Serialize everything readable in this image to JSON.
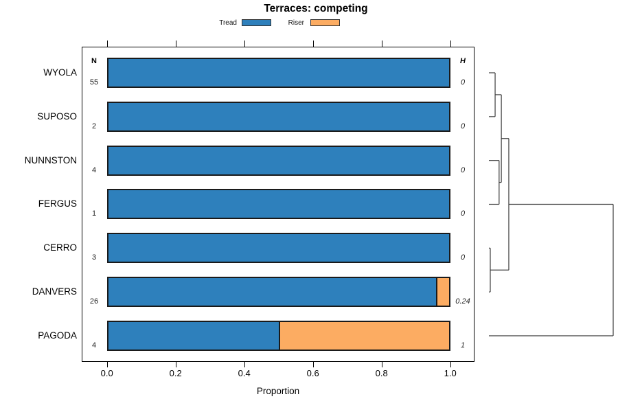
{
  "title": "Terraces: competing",
  "legend": {
    "items": [
      {
        "label": "Tread",
        "color": "#2E80BC"
      },
      {
        "label": "Riser",
        "color": "#FCAC62"
      }
    ]
  },
  "columns": {
    "n_header": "N",
    "h_header": "H"
  },
  "axis": {
    "label": "Proportion",
    "tick_labels": [
      "0.0",
      "0.2",
      "0.4",
      "0.6",
      "0.8",
      "1.0"
    ],
    "tick_values": [
      0,
      0.2,
      0.4,
      0.6,
      0.8,
      1.0
    ],
    "min": 0,
    "max": 1
  },
  "chart_data": {
    "type": "bar",
    "orientation": "horizontal",
    "stacked": true,
    "title": "Terraces: competing",
    "xlabel": "Proportion",
    "xlim": [
      0,
      1
    ],
    "grid": false,
    "legend_position": "top",
    "categories": [
      "WYOLA",
      "SUPOSO",
      "NUNNSTON",
      "FERGUS",
      "CERRO",
      "DANVERS",
      "PAGODA"
    ],
    "n_values": [
      "55",
      "2",
      "4",
      "1",
      "3",
      "26",
      "4"
    ],
    "h_values": [
      "0",
      "0",
      "0",
      "0",
      "0",
      "0.24",
      "1"
    ],
    "series": [
      {
        "name": "Tread",
        "color": "#2E80BC",
        "values": [
          1,
          1,
          1,
          1,
          1,
          0.962,
          0.5
        ]
      },
      {
        "name": "Riser",
        "color": "#FCAC62",
        "values": [
          0,
          0,
          0,
          0,
          0,
          0.038,
          0.5
        ]
      }
    ]
  },
  "dendrogram": {
    "leaves": [
      "WYOLA",
      "SUPOSO",
      "NUNNSTON",
      "FERGUS",
      "CERRO",
      "DANVERS",
      "PAGODA"
    ],
    "merges": [
      {
        "id": "m1",
        "children": [
          "WYOLA",
          "SUPOSO"
        ],
        "height": 0.05
      },
      {
        "id": "m2",
        "children": [
          "NUNNSTON",
          "FERGUS"
        ],
        "height": 0.082
      },
      {
        "id": "m3",
        "children": [
          "m1",
          "m2"
        ],
        "height": 0.1
      },
      {
        "id": "m4",
        "children": [
          "CERRO",
          "DANVERS"
        ],
        "height": 0.011
      },
      {
        "id": "m5",
        "children": [
          "m3",
          "m4"
        ],
        "height": 0.16
      },
      {
        "id": "m6",
        "children": [
          "m5",
          "PAGODA"
        ],
        "height": 1.0
      }
    ],
    "line_color": "#3c3c3c"
  }
}
